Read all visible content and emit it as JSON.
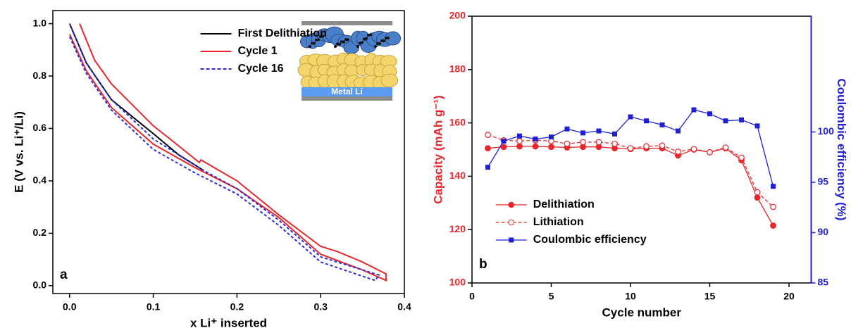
{
  "chart_data": [
    {
      "type": "line",
      "panel_label": "a",
      "x_label": "x Li⁺ inserted",
      "y_label": "E (V vs. Li⁺/Li)",
      "xlim": [
        -0.02,
        0.4
      ],
      "ylim": [
        -0.03,
        1.05
      ],
      "xticks": [
        {
          "value": 0,
          "label": "0.0"
        },
        0.1,
        0.2,
        0.3,
        0.4
      ],
      "yticks": [
        {
          "value": 0,
          "label": "0.0"
        },
        0.2,
        0.4,
        0.6,
        0.8,
        {
          "value": 1,
          "label": "1.0"
        }
      ],
      "legend": "upper center",
      "inset_label": "Metal Li",
      "series": [
        {
          "name": "First Delithiation",
          "color": "#000000",
          "dash": false,
          "x": [
            0.0,
            0.02,
            0.05,
            0.1,
            0.13,
            0.16
          ],
          "values": [
            1.0,
            0.85,
            0.71,
            0.58,
            0.5,
            0.44
          ]
        },
        {
          "name": "Cycle 1",
          "color": "#e8262b",
          "dash": false,
          "x": [
            0.0,
            0.02,
            0.05,
            0.1,
            0.15,
            0.2,
            0.25,
            0.3,
            0.35,
            0.378,
            0.378,
            0.35,
            0.32,
            0.3,
            0.25,
            0.2,
            0.157,
            0.155,
            0.12,
            0.1,
            0.05,
            0.03,
            0.012
          ],
          "values": [
            0.96,
            0.82,
            0.68,
            0.54,
            0.45,
            0.37,
            0.26,
            0.12,
            0.06,
            0.02,
            0.045,
            0.09,
            0.13,
            0.15,
            0.27,
            0.4,
            0.48,
            0.47,
            0.56,
            0.61,
            0.77,
            0.86,
            1.0
          ]
        },
        {
          "name": "Cycle 16",
          "color": "#2b2bd8",
          "dash": true,
          "x": [
            0.0,
            0.02,
            0.05,
            0.1,
            0.15,
            0.2,
            0.25,
            0.3,
            0.365,
            0.37,
            0.3,
            0.25,
            0.2,
            0.16,
            0.1,
            0.05,
            0.02,
            0.0
          ],
          "values": [
            0.95,
            0.81,
            0.67,
            0.52,
            0.43,
            0.35,
            0.23,
            0.09,
            0.02,
            0.04,
            0.11,
            0.25,
            0.37,
            0.44,
            0.56,
            0.71,
            0.85,
            1.0
          ]
        }
      ]
    },
    {
      "type": "line",
      "panel_label": "b",
      "x_label": "Cycle number",
      "y_label": "Capacity (mAh g⁻¹)",
      "y2_label": "Coulombic efficiency (%)",
      "xlim": [
        0,
        21.4
      ],
      "ylim": [
        100,
        200
      ],
      "y2lim": [
        85,
        111.5
      ],
      "xticks": [
        0,
        5,
        10,
        15,
        20
      ],
      "yticks": [
        100,
        120,
        140,
        160,
        180,
        200
      ],
      "y2ticks": [
        85,
        90,
        95,
        100
      ],
      "y_color": "#e8262b",
      "y2_color": "#1f1fd6",
      "legend": "lower left",
      "x": [
        1,
        2,
        3,
        4,
        5,
        6,
        7,
        8,
        9,
        10,
        11,
        12,
        13,
        14,
        15,
        16,
        17,
        18,
        19
      ],
      "series": [
        {
          "name": "Delithiation",
          "color": "#e8262b",
          "marker": "filled-circle",
          "dash": false,
          "values": [
            150.5,
            151,
            151.2,
            151.2,
            151,
            150.8,
            151,
            151,
            150.5,
            150.2,
            150.5,
            150.5,
            147.8,
            150,
            149,
            150.5,
            146,
            132,
            121.5
          ]
        },
        {
          "name": "Lithiation",
          "color": "#e8262b",
          "marker": "open-circle",
          "dash": true,
          "values": [
            155.5,
            153.5,
            153.2,
            153.5,
            153.2,
            152.2,
            152.8,
            152.8,
            152.2,
            150.5,
            151.2,
            151.5,
            149.2,
            150.2,
            149,
            150.8,
            147,
            134,
            128.5
          ]
        },
        {
          "name": "Coulombic efficiency",
          "color": "#1f1fd6",
          "marker": "square",
          "dash": false,
          "axis": "y2",
          "values": [
            96.5,
            99.1,
            99.6,
            99.3,
            99.5,
            100.3,
            99.9,
            100.1,
            99.8,
            101.5,
            101.1,
            100.7,
            100.1,
            102.2,
            101.8,
            101.1,
            101.2,
            100.6,
            94.6
          ]
        }
      ]
    }
  ]
}
